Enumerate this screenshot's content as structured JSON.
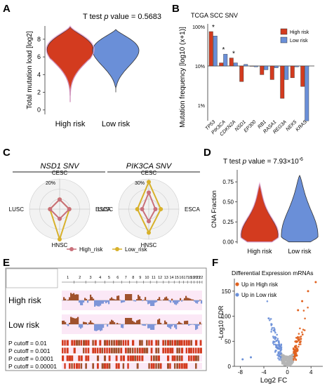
{
  "panels": {
    "A": "A",
    "B": "B",
    "C": "C",
    "D": "D",
    "E": "E",
    "F": "F"
  },
  "colors": {
    "high": "#d33b1f",
    "low": "#6a8fd8",
    "pink": "#e9a3d2",
    "brown": "#a0522d",
    "lowOrange": "#d8b12b",
    "gray": "#aaaaaa"
  },
  "chart_data": [
    {
      "id": "A",
      "type": "violin",
      "title_prefix": "T test ",
      "title_italic": "p",
      "title_suffix": " value = 0.5683",
      "ylabel": "Total mutation load [log2]",
      "categories": [
        "High risk",
        "Low risk"
      ],
      "yticks": [
        0,
        2,
        4,
        6,
        8
      ],
      "ylim": [
        -0.5,
        9.5
      ],
      "series": [
        {
          "name": "High risk",
          "min": 0.9,
          "max": 9.4,
          "median": 7.0
        },
        {
          "name": "Low risk",
          "min": 2.0,
          "max": 9.1,
          "median": 7.1
        }
      ]
    },
    {
      "id": "B",
      "type": "bar",
      "title": "TCGA SCC SNV",
      "ylabel": "Mutation frequency [log10 (x+1)]",
      "yticks": [
        "100%",
        "10%",
        "1%"
      ],
      "categories": [
        "TP53",
        "PIK3CA",
        "CDKN2A",
        "NSD1",
        "EP300",
        "RB1",
        "RASA1",
        "REG3A",
        "NEK5",
        "KRAS"
      ],
      "stars": [
        "TP53",
        "PIK3CA",
        "CDKN2A"
      ],
      "legend": [
        "High risk",
        "Low risk"
      ],
      "series": [
        {
          "name": "High risk",
          "values": [
            75,
            12,
            16,
            4.0,
            10,
            6,
            4.5,
            1.5,
            5,
            3
          ]
        },
        {
          "name": "Low risk",
          "values": [
            58,
            20,
            12,
            11,
            9.5,
            8,
            9,
            4.5,
            9.5,
            0.4
          ]
        }
      ]
    },
    {
      "id": "C",
      "type": "radar",
      "subplots": [
        {
          "title": "NSD1 SNV",
          "scale_label": "20%",
          "axes": [
            "CESC",
            "ESCA",
            "HNSC",
            "LUSC"
          ],
          "series": [
            {
              "name": "High_risk",
              "values": [
                0.32,
                0.32,
                0.32,
                0.32
              ]
            },
            {
              "name": "Low_risk",
              "values": [
                0.32,
                0.32,
                1.0,
                0.32
              ]
            }
          ]
        },
        {
          "title": "PIK3CA SNV",
          "scale_label": "30%",
          "axes": [
            "CESC",
            "ESCA",
            "HNSC",
            "LUSC"
          ],
          "series": [
            {
              "name": "High_risk",
              "values": [
                0.55,
                0.22,
                0.4,
                0.22
              ]
            },
            {
              "name": "Low_risk",
              "values": [
                0.9,
                0.4,
                0.78,
                0.38
              ]
            }
          ]
        }
      ],
      "legend": [
        "High_risk",
        "Low_risk"
      ]
    },
    {
      "id": "D",
      "type": "violin",
      "title_prefix": "T test ",
      "title_italic": "p",
      "title_suffix": " value = 7.93×10",
      "title_exp": "-6",
      "ylabel": "CNA Fraction",
      "categories": [
        "High risk",
        "Low risk"
      ],
      "yticks": [
        "0.00",
        "0.25",
        "0.50",
        "0.75"
      ],
      "ylim": [
        -0.02,
        0.9
      ],
      "series": [
        {
          "name": "High risk",
          "min": 0.0,
          "max": 0.72
        },
        {
          "name": "Low risk",
          "min": 0.0,
          "max": 0.83
        }
      ]
    },
    {
      "id": "E",
      "type": "heatmap",
      "chrom_labels": [
        "1",
        "2",
        "3",
        "4",
        "5",
        "6",
        "7",
        "8",
        "9",
        "10",
        "11",
        "12",
        "13",
        "14",
        "15",
        "16",
        "17",
        "18",
        "19",
        "20",
        "21",
        "22"
      ],
      "rows": [
        "High risk",
        "Low risk"
      ],
      "cutoffs": [
        "P cutoff = 0.01",
        "P cutoff = 0.001",
        "P cutoff = 0.0001",
        "P cutoff = 0.00001"
      ]
    },
    {
      "id": "F",
      "type": "scatter",
      "title": "Differential Expression mRNAs",
      "xlabel": "Log2 FC",
      "ylabel": "-Log10 FDR",
      "xticks": [
        -8,
        -4,
        0,
        4
      ],
      "yticks": [
        0,
        50,
        100,
        150
      ],
      "xlim": [
        -9,
        6
      ],
      "ylim": [
        0,
        175
      ],
      "legend": [
        "Up in High risk",
        "Up in Low risk"
      ]
    }
  ]
}
